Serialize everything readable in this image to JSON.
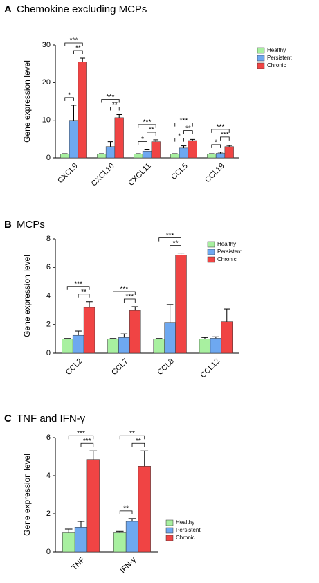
{
  "chart_data": [
    {
      "type": "bar",
      "panel": "A",
      "title": "Chemokine excluding MCPs",
      "ylabel": "Gene expression level",
      "categories": [
        "CXCL9",
        "CXCL10",
        "CXCL11",
        "CCL5",
        "CCL19"
      ],
      "series": [
        {
          "name": "Healthy",
          "color": "#a8f0a0",
          "values": [
            1.0,
            1.0,
            1.0,
            1.0,
            1.0
          ],
          "errors": [
            0.1,
            0.1,
            0.1,
            0.1,
            0.1
          ]
        },
        {
          "name": "Persistent",
          "color": "#6ea8f0",
          "values": [
            9.8,
            3.0,
            1.8,
            2.6,
            1.2
          ],
          "errors": [
            4.2,
            1.3,
            0.5,
            0.6,
            0.3
          ]
        },
        {
          "name": "Chronic",
          "color": "#f04444",
          "values": [
            25.5,
            10.7,
            4.3,
            4.6,
            3.0
          ],
          "errors": [
            1.0,
            0.8,
            0.5,
            0.3,
            0.3
          ]
        }
      ],
      "ylim": [
        0,
        30
      ],
      "yticks": [
        0,
        10,
        20,
        30
      ],
      "legend": "upper right",
      "annotations": [
        {
          "category": "CXCL9",
          "between": [
            "Healthy",
            "Persistent"
          ],
          "text": "*"
        },
        {
          "category": "CXCL9",
          "between": [
            "Persistent",
            "Chronic"
          ],
          "text": "**"
        },
        {
          "category": "CXCL9",
          "between": [
            "Healthy",
            "Chronic"
          ],
          "text": "***"
        },
        {
          "category": "CXCL10",
          "between": [
            "Persistent",
            "Chronic"
          ],
          "text": "**"
        },
        {
          "category": "CXCL10",
          "between": [
            "Healthy",
            "Chronic"
          ],
          "text": "***"
        },
        {
          "category": "CXCL11",
          "between": [
            "Healthy",
            "Persistent"
          ],
          "text": "*"
        },
        {
          "category": "CXCL11",
          "between": [
            "Persistent",
            "Chronic"
          ],
          "text": "**"
        },
        {
          "category": "CXCL11",
          "between": [
            "Healthy",
            "Chronic"
          ],
          "text": "***"
        },
        {
          "category": "CCL5",
          "between": [
            "Healthy",
            "Persistent"
          ],
          "text": "*"
        },
        {
          "category": "CCL5",
          "between": [
            "Persistent",
            "Chronic"
          ],
          "text": "**"
        },
        {
          "category": "CCL5",
          "between": [
            "Healthy",
            "Chronic"
          ],
          "text": "***"
        },
        {
          "category": "CCL19",
          "between": [
            "Healthy",
            "Persistent"
          ],
          "text": "*"
        },
        {
          "category": "CCL19",
          "between": [
            "Persistent",
            "Chronic"
          ],
          "text": "***"
        },
        {
          "category": "CCL19",
          "between": [
            "Healthy",
            "Chronic"
          ],
          "text": "***"
        }
      ]
    },
    {
      "type": "bar",
      "panel": "B",
      "title": "MCPs",
      "ylabel": "Gene expression level",
      "categories": [
        "CCL2",
        "CCL7",
        "CCL8",
        "CCL12"
      ],
      "series": [
        {
          "name": "Healthy",
          "color": "#a8f0a0",
          "values": [
            1.0,
            1.0,
            1.0,
            1.0
          ],
          "errors": [
            0.03,
            0.03,
            0.03,
            0.1
          ]
        },
        {
          "name": "Persistent",
          "color": "#6ea8f0",
          "values": [
            1.25,
            1.1,
            2.15,
            1.05
          ],
          "errors": [
            0.3,
            0.25,
            1.25,
            0.1
          ]
        },
        {
          "name": "Chronic",
          "color": "#f04444",
          "values": [
            3.2,
            3.0,
            6.85,
            2.2
          ],
          "errors": [
            0.4,
            0.25,
            0.15,
            0.9
          ]
        }
      ],
      "ylim": [
        0,
        8
      ],
      "yticks": [
        0,
        2,
        4,
        6,
        8
      ],
      "legend": "upper right",
      "annotations": [
        {
          "category": "CCL2",
          "between": [
            "Persistent",
            "Chronic"
          ],
          "text": "**"
        },
        {
          "category": "CCL2",
          "between": [
            "Healthy",
            "Chronic"
          ],
          "text": "***"
        },
        {
          "category": "CCL7",
          "between": [
            "Persistent",
            "Chronic"
          ],
          "text": "***"
        },
        {
          "category": "CCL7",
          "between": [
            "Healthy",
            "Chronic"
          ],
          "text": "***"
        },
        {
          "category": "CCL8",
          "between": [
            "Persistent",
            "Chronic"
          ],
          "text": "**"
        },
        {
          "category": "CCL8",
          "between": [
            "Healthy",
            "Chronic"
          ],
          "text": "***"
        }
      ]
    },
    {
      "type": "bar",
      "panel": "C",
      "title": "TNF and IFN-γ",
      "ylabel": "Gene expression level",
      "categories": [
        "TNF",
        "IFN-γ"
      ],
      "series": [
        {
          "name": "Healthy",
          "color": "#a8f0a0",
          "values": [
            1.0,
            1.0
          ],
          "errors": [
            0.2,
            0.08
          ]
        },
        {
          "name": "Persistent",
          "color": "#6ea8f0",
          "values": [
            1.3,
            1.6
          ],
          "errors": [
            0.3,
            0.15
          ]
        },
        {
          "name": "Chronic",
          "color": "#f04444",
          "values": [
            4.85,
            4.5
          ],
          "errors": [
            0.45,
            0.8
          ]
        }
      ],
      "ylim": [
        0,
        6
      ],
      "yticks": [
        0,
        2,
        4,
        6
      ],
      "legend": "lower right",
      "annotations": [
        {
          "category": "TNF",
          "between": [
            "Persistent",
            "Chronic"
          ],
          "text": "***"
        },
        {
          "category": "TNF",
          "between": [
            "Healthy",
            "Chronic"
          ],
          "text": "***"
        },
        {
          "category": "IFN-γ",
          "between": [
            "Healthy",
            "Persistent"
          ],
          "text": "**"
        },
        {
          "category": "IFN-γ",
          "between": [
            "Persistent",
            "Chronic"
          ],
          "text": "**"
        },
        {
          "category": "IFN-γ",
          "between": [
            "Healthy",
            "Chronic"
          ],
          "text": "**"
        }
      ]
    }
  ]
}
